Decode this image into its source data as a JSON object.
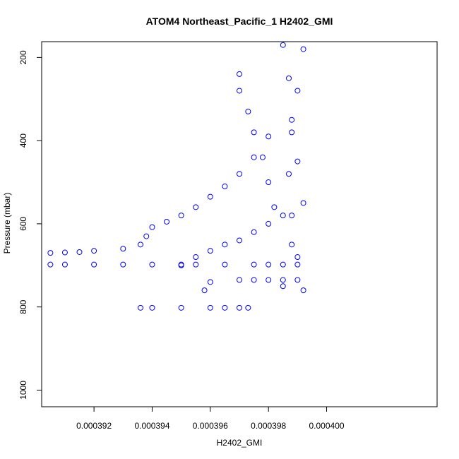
{
  "chart_data": {
    "type": "scatter",
    "title": "ATOM4 Northeast_Pacific_1 H2402_GMI",
    "xlabel": "H2402_GMI",
    "ylabel": "Pressure (mbar)",
    "xlim": [
      0.0003902,
      0.0004038
    ],
    "ylim": [
      1040,
      162
    ],
    "y_reversed": true,
    "x_ticks": [
      0.000392,
      0.000394,
      0.000396,
      0.000398,
      0.0004
    ],
    "x_tick_labels": [
      "0.000392",
      "0.000394",
      "0.000396",
      "0.000398",
      "0.000400"
    ],
    "y_ticks": [
      200,
      400,
      600,
      800,
      1000
    ],
    "y_tick_labels": [
      "200",
      "400",
      "600",
      "800",
      "1000"
    ],
    "marker": "open-circle",
    "point_color": "#0000ff",
    "grid": false,
    "series": [
      {
        "x": [
          0.0003905,
          0.000391,
          0.0003915,
          0.000392,
          0.000393,
          0.0003936,
          0.0003938,
          0.000394,
          0.0003945,
          0.000395,
          0.0003955,
          0.000396,
          0.0003965,
          0.000397,
          0.0003975,
          0.000398
        ],
        "y": [
          670,
          669,
          668,
          665,
          660,
          650,
          630,
          608,
          595,
          580,
          560,
          535,
          510,
          480,
          440,
          390
        ]
      },
      {
        "x": [
          0.0003905,
          0.000391,
          0.000392,
          0.000393,
          0.000394,
          0.000395,
          0.0003955,
          0.0003965,
          0.0003975,
          0.000398,
          0.0003985,
          0.000399
        ],
        "y": [
          698,
          698,
          698,
          698,
          698,
          698,
          698,
          698,
          698,
          698,
          698,
          698
        ]
      },
      {
        "x": [
          0.0003936,
          0.000394,
          0.000395,
          0.000396,
          0.0003965,
          0.000397,
          0.0003973
        ],
        "y": [
          802,
          802,
          802,
          802,
          802,
          802,
          802
        ]
      },
      {
        "x": [
          0.000395,
          0.0003955,
          0.000396,
          0.0003965,
          0.000397,
          0.0003975,
          0.000398,
          0.0003985
        ],
        "y": [
          700,
          680,
          665,
          650,
          640,
          620,
          600,
          580
        ]
      },
      {
        "x": [
          0.0003958,
          0.000396,
          0.000397,
          0.0003975,
          0.000398,
          0.0003985,
          0.000399
        ],
        "y": [
          760,
          740,
          735,
          735,
          735,
          735,
          735
        ]
      },
      {
        "x": [
          0.000397,
          0.000397,
          0.0003973,
          0.0003975,
          0.0003978,
          0.000398,
          0.0003982
        ],
        "y": [
          240,
          280,
          330,
          380,
          440,
          500,
          560
        ]
      },
      {
        "x": [
          0.0003985,
          0.0003987,
          0.0003988,
          0.000399,
          0.0003992,
          0.0003988,
          0.0003985
        ],
        "y": [
          170,
          250,
          350,
          450,
          550,
          650,
          750
        ]
      },
      {
        "x": [
          0.0003992,
          0.000399,
          0.0003988,
          0.0003987,
          0.0003988,
          0.000399,
          0.0003992
        ],
        "y": [
          180,
          280,
          380,
          480,
          580,
          680,
          760
        ]
      }
    ]
  }
}
